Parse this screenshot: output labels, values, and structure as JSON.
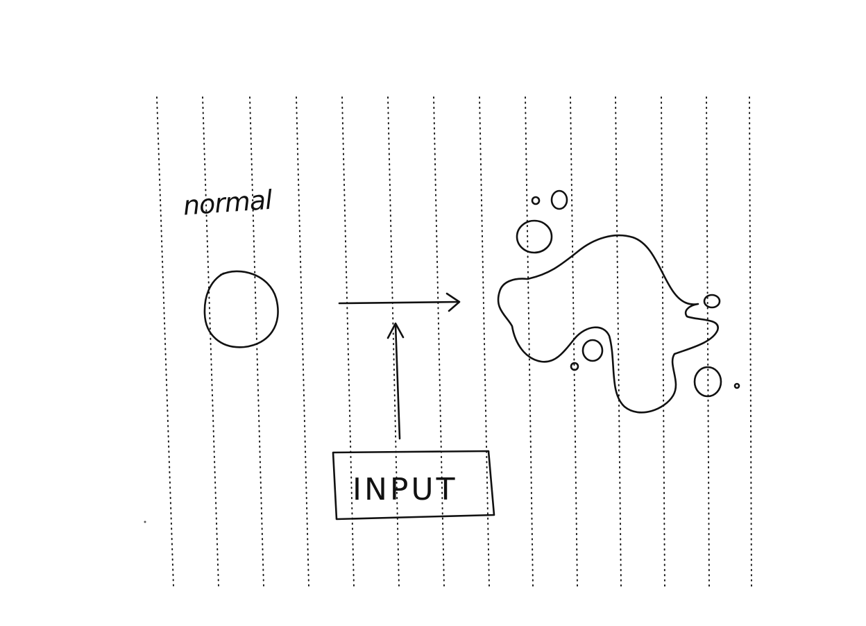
{
  "labels": {
    "state_label": "normal",
    "input_label": "INPUT"
  }
}
